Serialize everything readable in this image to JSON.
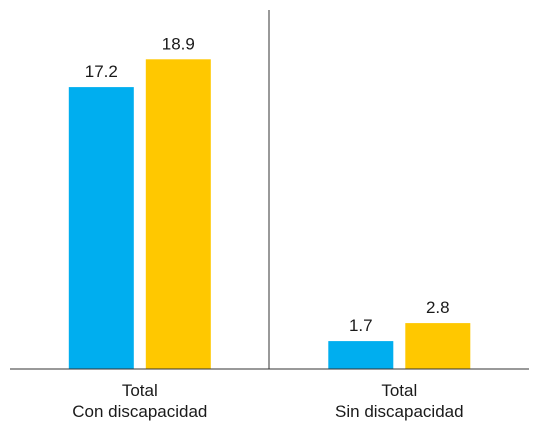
{
  "chart_data": {
    "type": "bar",
    "categories": [
      [
        "Total",
        "Con discapacidad"
      ],
      [
        "Total",
        "Sin discapacidad"
      ]
    ],
    "series": [
      {
        "values": [
          17.2,
          1.7
        ],
        "color": "#00aeef"
      },
      {
        "values": [
          18.9,
          2.8
        ],
        "color": "#ffc800"
      }
    ],
    "ylim": [
      0,
      21.6
    ],
    "grid": false,
    "legend": "none",
    "group_divider": true
  }
}
